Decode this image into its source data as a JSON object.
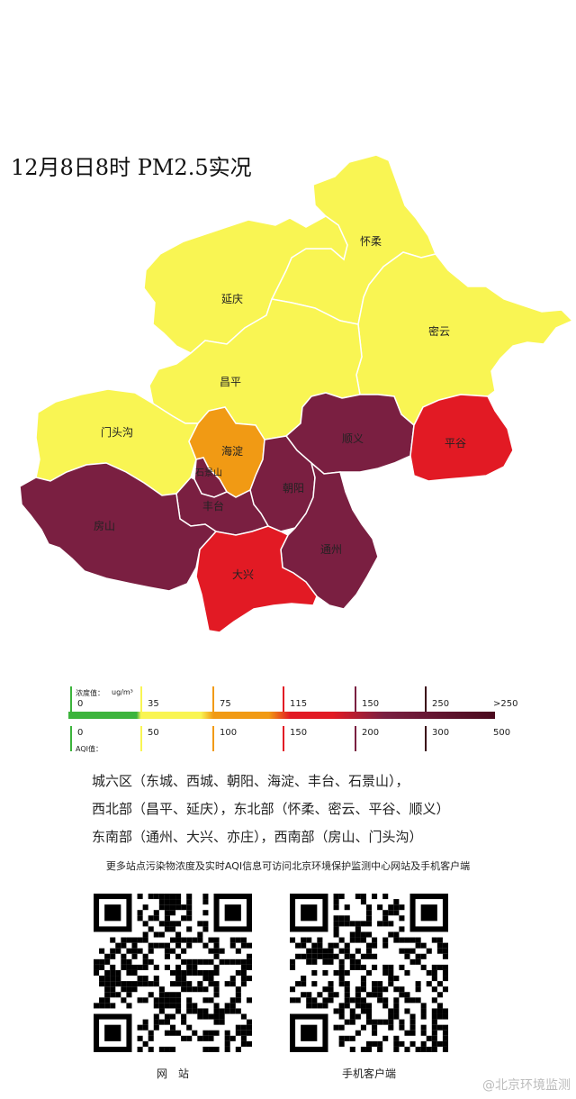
{
  "title": "12月8日8时 PM2.5实况",
  "colors": {
    "yellow": "#f9f553",
    "orange": "#f19a14",
    "red": "#e21a24",
    "maroon": "#7a1f41",
    "green": "#3cb43c"
  },
  "districts": [
    {
      "name": "怀柔",
      "level": "yellow"
    },
    {
      "name": "延庆",
      "level": "yellow"
    },
    {
      "name": "密云",
      "level": "yellow"
    },
    {
      "name": "昌平",
      "level": "yellow"
    },
    {
      "name": "门头沟",
      "level": "yellow"
    },
    {
      "name": "海淀",
      "level": "orange"
    },
    {
      "name": "顺义",
      "level": "maroon"
    },
    {
      "name": "平谷",
      "level": "red"
    },
    {
      "name": "石景山",
      "level": "maroon"
    },
    {
      "name": "朝阳",
      "level": "maroon"
    },
    {
      "name": "丰台",
      "level": "maroon"
    },
    {
      "name": "房山",
      "level": "maroon"
    },
    {
      "name": "通州",
      "level": "maroon"
    },
    {
      "name": "大兴",
      "level": "red"
    }
  ],
  "legend": {
    "concentration_label": "浓度值：",
    "unit": "ug/m³",
    "aqi_label": "AQI值：",
    "concentration_values": [
      "0",
      "35",
      "75",
      "115",
      "150",
      "250",
      ">250"
    ],
    "aqi_values": [
      "0",
      "50",
      "100",
      "150",
      "200",
      "300",
      "500"
    ]
  },
  "regions": [
    "城六区（东城、西城、朝阳、海淀、丰台、石景山），",
    "西北部（昌平、延庆），东北部（怀柔、密云、平谷、顺义）",
    "东南部（通州、大兴、亦庄），西南部（房山、门头沟）"
  ],
  "note": "更多站点污染物浓度及实时AQI信息可访问北京环境保护监测中心网站及手机客户端",
  "qr_codes": [
    {
      "label": "网　站"
    },
    {
      "label": "手机客户端"
    }
  ],
  "watermark": "@北京环境监测"
}
